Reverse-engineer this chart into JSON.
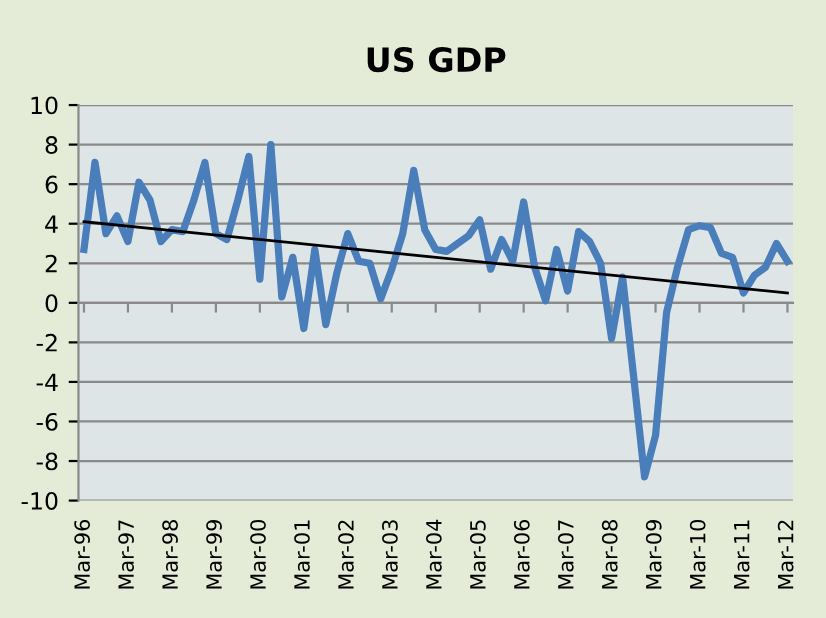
{
  "chart_data": {
    "type": "line",
    "title": "US GDP",
    "categories": [
      "Mar-96",
      null,
      null,
      null,
      "Mar-97",
      null,
      null,
      null,
      "Mar-98",
      null,
      null,
      null,
      "Mar-99",
      null,
      null,
      null,
      "Mar-00",
      null,
      null,
      null,
      "Mar-01",
      null,
      null,
      null,
      "Mar-02",
      null,
      null,
      null,
      "Mar-03",
      null,
      null,
      null,
      "Mar-04",
      null,
      null,
      null,
      "Mar-05",
      null,
      null,
      null,
      "Mar-06",
      null,
      null,
      null,
      "Mar-07",
      null,
      null,
      null,
      "Mar-08",
      null,
      null,
      null,
      "Mar-09",
      null,
      null,
      null,
      "Mar-10",
      null,
      null,
      null,
      "Mar-11",
      null,
      null,
      null,
      "Mar-12"
    ],
    "series": [
      {
        "color": "#4a7ebb",
        "values": [
          2.7,
          7.1,
          3.5,
          4.4,
          3.1,
          6.1,
          5.2,
          3.1,
          3.7,
          3.6,
          5.2,
          7.1,
          3.5,
          3.2,
          5.2,
          7.4,
          1.2,
          8.0,
          0.3,
          2.3,
          -1.3,
          2.7,
          -1.1,
          1.5,
          3.5,
          2.1,
          2.0,
          0.2,
          1.7,
          3.5,
          6.7,
          3.7,
          2.7,
          2.6,
          3.0,
          3.4,
          4.2,
          1.7,
          3.2,
          2.1,
          5.1,
          1.8,
          0.1,
          2.7,
          0.6,
          3.6,
          3.1,
          2.0,
          -1.8,
          1.3,
          -3.7,
          -8.8,
          -6.7,
          -0.5,
          1.8,
          3.7,
          3.9,
          3.8,
          2.5,
          2.3,
          0.5,
          1.4,
          1.8,
          3.0,
          2.1
        ]
      },
      {
        "type": "line",
        "color": "#000000",
        "x": [
          "Mar-96",
          "Mar-12"
        ],
        "values": [
          4.1,
          0.5
        ]
      }
    ],
    "ylim": [
      -10,
      10
    ],
    "yticks": [
      -10,
      -8,
      -6,
      -4,
      -2,
      0,
      2,
      4,
      6,
      8,
      10
    ],
    "grid": "y",
    "legend": false,
    "marker": "none",
    "line_style": "solid"
  }
}
